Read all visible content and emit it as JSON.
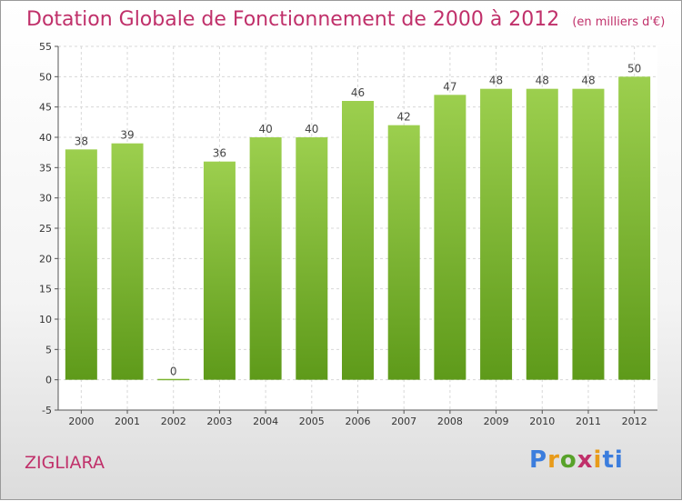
{
  "header": {
    "title": "Dotation Globale de Fonctionnement de 2000 à 2012",
    "unit": "(en milliers d'€)"
  },
  "footer": {
    "commune": "ZIGLIARA",
    "logo_letters": [
      "P",
      "r",
      "o",
      "x",
      "i",
      "ti"
    ]
  },
  "colors": {
    "bar_top": "#9ccf4e",
    "bar_bottom": "#5e9a1a",
    "title": "#c0306a"
  },
  "chart_data": {
    "type": "bar",
    "title": "Dotation Globale de Fonctionnement de 2000 à 2012",
    "subtitle": "(en milliers d'€)",
    "categories": [
      "2000",
      "2001",
      "2002",
      "2003",
      "2004",
      "2005",
      "2006",
      "2007",
      "2008",
      "2009",
      "2010",
      "2011",
      "2012"
    ],
    "values": [
      38,
      39,
      0,
      36,
      40,
      40,
      46,
      42,
      47,
      48,
      48,
      48,
      50
    ],
    "ylim": [
      -5,
      55
    ],
    "yticks": [
      "-5",
      "0",
      "5",
      "10",
      "15",
      "20",
      "25",
      "30",
      "35",
      "40",
      "45",
      "50",
      "55"
    ],
    "grid": true
  }
}
